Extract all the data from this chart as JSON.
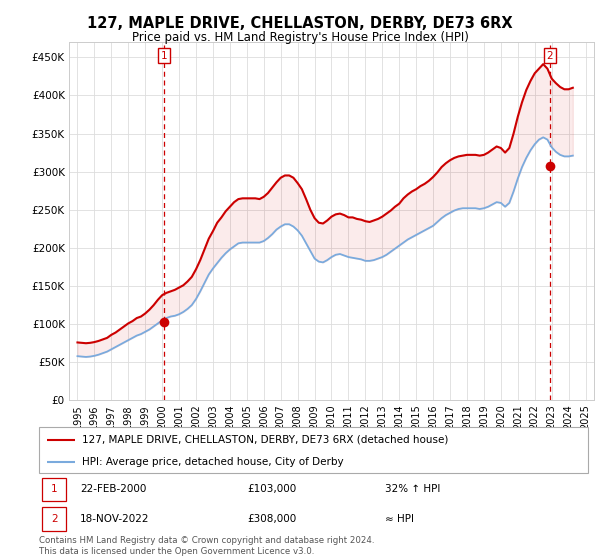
{
  "title": "127, MAPLE DRIVE, CHELLASTON, DERBY, DE73 6RX",
  "subtitle": "Price paid vs. HM Land Registry's House Price Index (HPI)",
  "ylabel_ticks": [
    "£0",
    "£50K",
    "£100K",
    "£150K",
    "£200K",
    "£250K",
    "£300K",
    "£350K",
    "£400K",
    "£450K"
  ],
  "ytick_values": [
    0,
    50000,
    100000,
    150000,
    200000,
    250000,
    300000,
    350000,
    400000,
    450000
  ],
  "ylim": [
    0,
    470000
  ],
  "xlim_start": 1994.5,
  "xlim_end": 2025.5,
  "legend_line1": "127, MAPLE DRIVE, CHELLASTON, DERBY, DE73 6RX (detached house)",
  "legend_line2": "HPI: Average price, detached house, City of Derby",
  "annotation1_date": "22-FEB-2000",
  "annotation1_price": "£103,000",
  "annotation1_hpi": "32% ↑ HPI",
  "annotation2_date": "18-NOV-2022",
  "annotation2_price": "£308,000",
  "annotation2_hpi": "≈ HPI",
  "footer": "Contains HM Land Registry data © Crown copyright and database right 2024.\nThis data is licensed under the Open Government Licence v3.0.",
  "property_color": "#cc0000",
  "hpi_color": "#7aaadd",
  "marker1_x": 2000.13,
  "marker1_y": 103000,
  "marker2_x": 2022.88,
  "marker2_y": 308000,
  "vline1_x": 2000.13,
  "vline2_x": 2022.88,
  "background_color": "#ffffff",
  "hpi_data_x": [
    1995.0,
    1995.25,
    1995.5,
    1995.75,
    1996.0,
    1996.25,
    1996.5,
    1996.75,
    1997.0,
    1997.25,
    1997.5,
    1997.75,
    1998.0,
    1998.25,
    1998.5,
    1998.75,
    1999.0,
    1999.25,
    1999.5,
    1999.75,
    2000.0,
    2000.25,
    2000.5,
    2000.75,
    2001.0,
    2001.25,
    2001.5,
    2001.75,
    2002.0,
    2002.25,
    2002.5,
    2002.75,
    2003.0,
    2003.25,
    2003.5,
    2003.75,
    2004.0,
    2004.25,
    2004.5,
    2004.75,
    2005.0,
    2005.25,
    2005.5,
    2005.75,
    2006.0,
    2006.25,
    2006.5,
    2006.75,
    2007.0,
    2007.25,
    2007.5,
    2007.75,
    2008.0,
    2008.25,
    2008.5,
    2008.75,
    2009.0,
    2009.25,
    2009.5,
    2009.75,
    2010.0,
    2010.25,
    2010.5,
    2010.75,
    2011.0,
    2011.25,
    2011.5,
    2011.75,
    2012.0,
    2012.25,
    2012.5,
    2012.75,
    2013.0,
    2013.25,
    2013.5,
    2013.75,
    2014.0,
    2014.25,
    2014.5,
    2014.75,
    2015.0,
    2015.25,
    2015.5,
    2015.75,
    2016.0,
    2016.25,
    2016.5,
    2016.75,
    2017.0,
    2017.25,
    2017.5,
    2017.75,
    2018.0,
    2018.25,
    2018.5,
    2018.75,
    2019.0,
    2019.25,
    2019.5,
    2019.75,
    2020.0,
    2020.25,
    2020.5,
    2020.75,
    2021.0,
    2021.25,
    2021.5,
    2021.75,
    2022.0,
    2022.25,
    2022.5,
    2022.75,
    2023.0,
    2023.25,
    2023.5,
    2023.75,
    2024.0,
    2024.25
  ],
  "hpi_data_y": [
    58000,
    57500,
    57000,
    57500,
    58500,
    60000,
    62000,
    64000,
    67000,
    70000,
    73000,
    76000,
    79000,
    82000,
    85000,
    87000,
    90000,
    93000,
    97000,
    101000,
    105000,
    108000,
    110000,
    111000,
    113000,
    116000,
    120000,
    125000,
    133000,
    143000,
    154000,
    165000,
    173000,
    180000,
    187000,
    193000,
    198000,
    202000,
    206000,
    207000,
    207000,
    207000,
    207000,
    207000,
    209000,
    213000,
    218000,
    224000,
    228000,
    231000,
    231000,
    228000,
    223000,
    216000,
    206000,
    196000,
    186000,
    182000,
    181000,
    184000,
    188000,
    191000,
    192000,
    190000,
    188000,
    187000,
    186000,
    185000,
    183000,
    183000,
    184000,
    186000,
    188000,
    191000,
    195000,
    199000,
    203000,
    207000,
    211000,
    214000,
    217000,
    220000,
    223000,
    226000,
    229000,
    234000,
    239000,
    243000,
    246000,
    249000,
    251000,
    252000,
    252000,
    252000,
    252000,
    251000,
    252000,
    254000,
    257000,
    260000,
    259000,
    254000,
    259000,
    274000,
    291000,
    306000,
    318000,
    328000,
    336000,
    342000,
    345000,
    342000,
    332000,
    326000,
    322000,
    320000,
    320000,
    321000
  ],
  "property_data_x": [
    1995.0,
    1995.25,
    1995.5,
    1995.75,
    1996.0,
    1996.25,
    1996.5,
    1996.75,
    1997.0,
    1997.25,
    1997.5,
    1997.75,
    1998.0,
    1998.25,
    1998.5,
    1998.75,
    1999.0,
    1999.25,
    1999.5,
    1999.75,
    2000.0,
    2000.25,
    2000.5,
    2000.75,
    2001.0,
    2001.25,
    2001.5,
    2001.75,
    2002.0,
    2002.25,
    2002.5,
    2002.75,
    2003.0,
    2003.25,
    2003.5,
    2003.75,
    2004.0,
    2004.25,
    2004.5,
    2004.75,
    2005.0,
    2005.25,
    2005.5,
    2005.75,
    2006.0,
    2006.25,
    2006.5,
    2006.75,
    2007.0,
    2007.25,
    2007.5,
    2007.75,
    2008.0,
    2008.25,
    2008.5,
    2008.75,
    2009.0,
    2009.25,
    2009.5,
    2009.75,
    2010.0,
    2010.25,
    2010.5,
    2010.75,
    2011.0,
    2011.25,
    2011.5,
    2011.75,
    2012.0,
    2012.25,
    2012.5,
    2012.75,
    2013.0,
    2013.25,
    2013.5,
    2013.75,
    2014.0,
    2014.25,
    2014.5,
    2014.75,
    2015.0,
    2015.25,
    2015.5,
    2015.75,
    2016.0,
    2016.25,
    2016.5,
    2016.75,
    2017.0,
    2017.25,
    2017.5,
    2017.75,
    2018.0,
    2018.25,
    2018.5,
    2018.75,
    2019.0,
    2019.25,
    2019.5,
    2019.75,
    2020.0,
    2020.25,
    2020.5,
    2020.75,
    2021.0,
    2021.25,
    2021.5,
    2021.75,
    2022.0,
    2022.25,
    2022.5,
    2022.75,
    2023.0,
    2023.25,
    2023.5,
    2023.75,
    2024.0,
    2024.25
  ],
  "property_data_y": [
    76000,
    75500,
    75000,
    75500,
    76500,
    78000,
    80000,
    82000,
    86000,
    89000,
    93000,
    97000,
    101000,
    104000,
    108000,
    110000,
    114000,
    119000,
    125000,
    132000,
    138000,
    141000,
    143000,
    145000,
    148000,
    151000,
    156000,
    162000,
    172000,
    184000,
    198000,
    212000,
    222000,
    233000,
    240000,
    248000,
    254000,
    260000,
    264000,
    265000,
    265000,
    265000,
    265000,
    264000,
    267000,
    272000,
    279000,
    286000,
    292000,
    295000,
    295000,
    292000,
    285000,
    277000,
    264000,
    250000,
    239000,
    233000,
    232000,
    236000,
    241000,
    244000,
    245000,
    243000,
    240000,
    240000,
    238000,
    237000,
    235000,
    234000,
    236000,
    238000,
    241000,
    245000,
    249000,
    254000,
    258000,
    265000,
    270000,
    274000,
    277000,
    281000,
    284000,
    288000,
    293000,
    299000,
    306000,
    311000,
    315000,
    318000,
    320000,
    321000,
    322000,
    322000,
    322000,
    321000,
    322000,
    325000,
    329000,
    333000,
    331000,
    325000,
    331000,
    350000,
    372000,
    391000,
    407000,
    419000,
    429000,
    435000,
    441000,
    435000,
    422000,
    416000,
    411000,
    408000,
    408000,
    410000
  ]
}
